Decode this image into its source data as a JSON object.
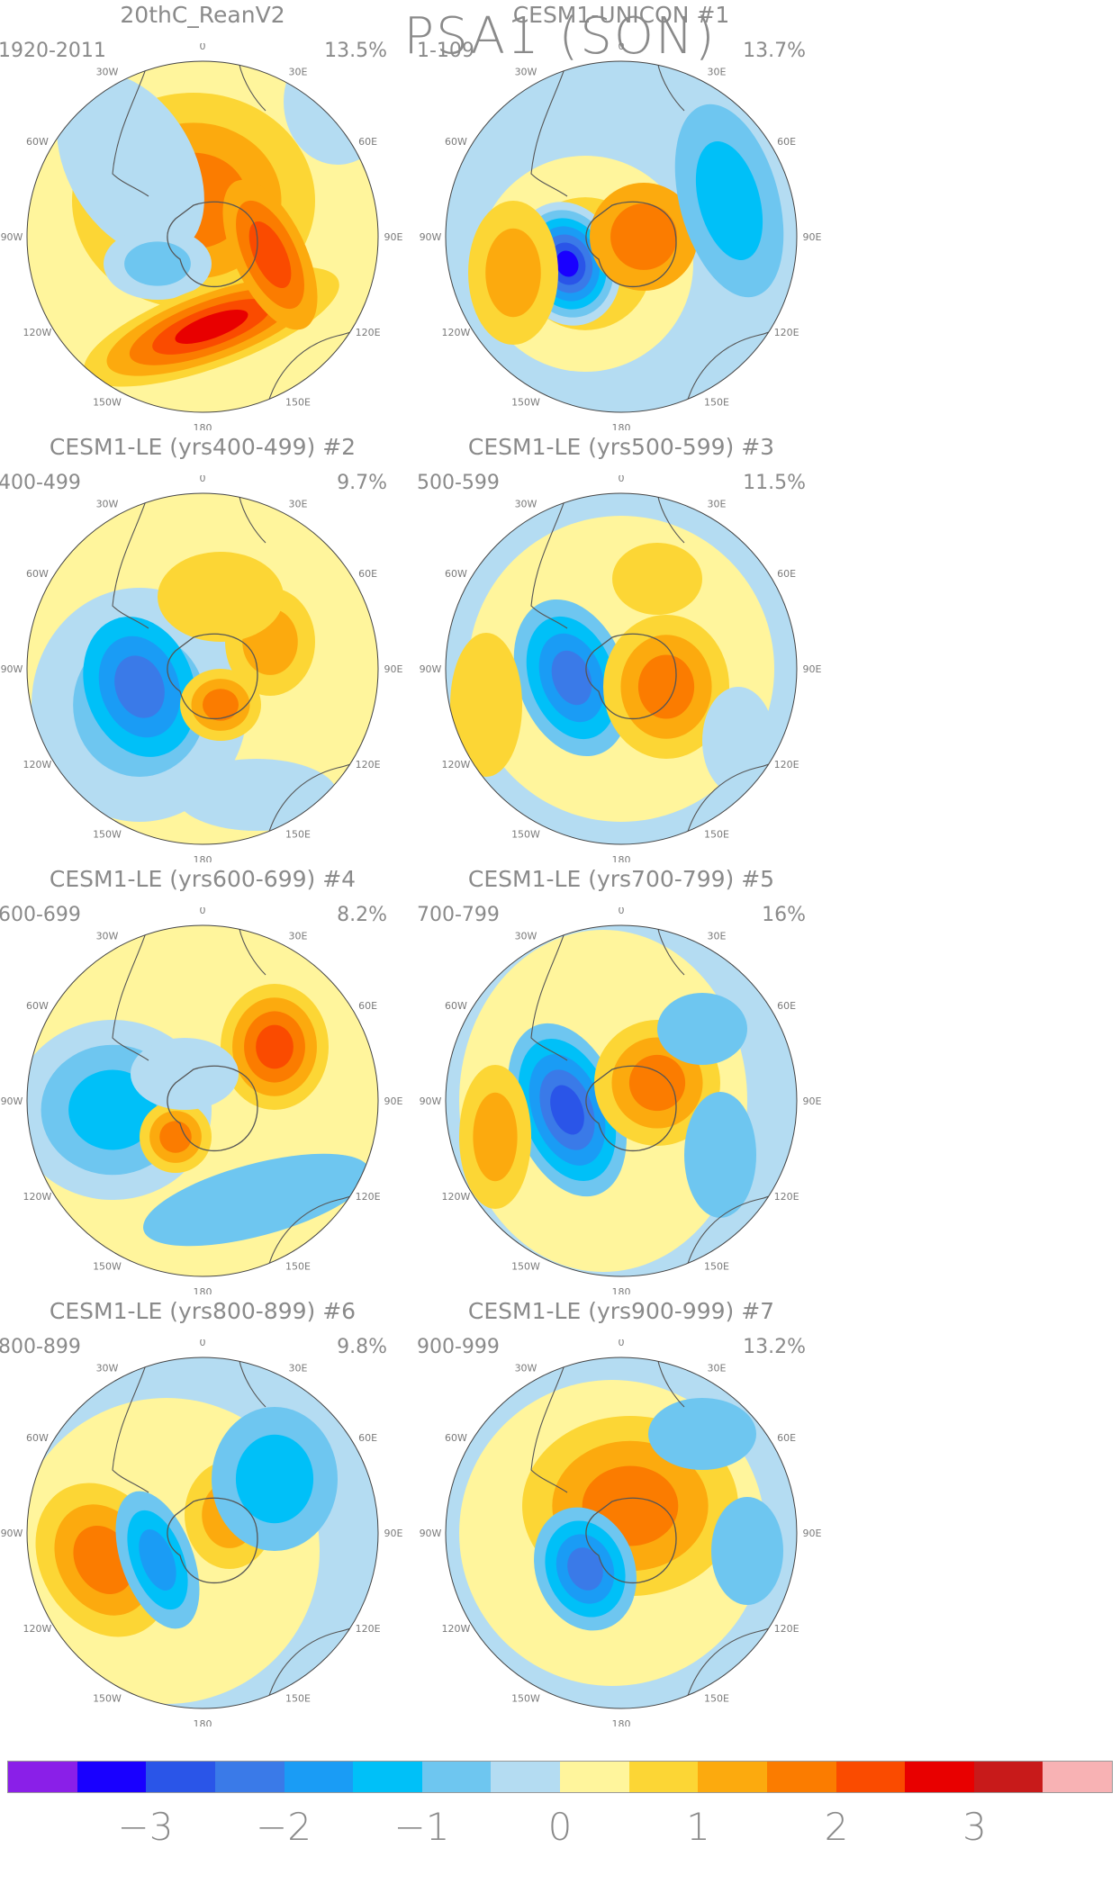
{
  "title": "PSA1 (SON)",
  "panels": [
    {
      "name": "20thC_ReanV2",
      "num": "",
      "years": "1920-2011",
      "pct": "13.5%"
    },
    {
      "name": "CESM1-UNICON",
      "num": "#1",
      "years": "1-109",
      "pct": "13.7%"
    },
    {
      "name": "CESM1-LE (yrs400-499)",
      "num": "#2",
      "years": "400-499",
      "pct": "9.7%"
    },
    {
      "name": "CESM1-LE (yrs500-599)",
      "num": "#3",
      "years": "500-599",
      "pct": "11.5%"
    },
    {
      "name": "CESM1-LE (yrs600-699)",
      "num": "#4",
      "years": "600-699",
      "pct": "8.2%"
    },
    {
      "name": "CESM1-LE (yrs700-799)",
      "num": "#5",
      "years": "700-799",
      "pct": "16%"
    },
    {
      "name": "CESM1-LE (yrs800-899)",
      "num": "#6",
      "years": "800-899",
      "pct": "9.8%"
    },
    {
      "name": "CESM1-LE (yrs900-999)",
      "num": "#7",
      "years": "900-999",
      "pct": "13.2%"
    }
  ],
  "longitude_labels": [
    "0",
    "30E",
    "60E",
    "90E",
    "120E",
    "150E",
    "180",
    "150W",
    "120W",
    "90W",
    "60W",
    "30W"
  ],
  "colorbar": {
    "colors": [
      "#8a1fe8",
      "#1900ff",
      "#2a55e8",
      "#3a7ae8",
      "#1a9cf5",
      "#00c0f8",
      "#6ec6f0",
      "#b4dcf2",
      "#fff59c",
      "#fcd635",
      "#fcaa0e",
      "#fb7c00",
      "#fa4b00",
      "#e80000",
      "#c81a1a",
      "#f8b2b4"
    ],
    "labels": [
      "−3",
      "−2",
      "−1",
      "0",
      "1",
      "2",
      "3"
    ]
  }
}
